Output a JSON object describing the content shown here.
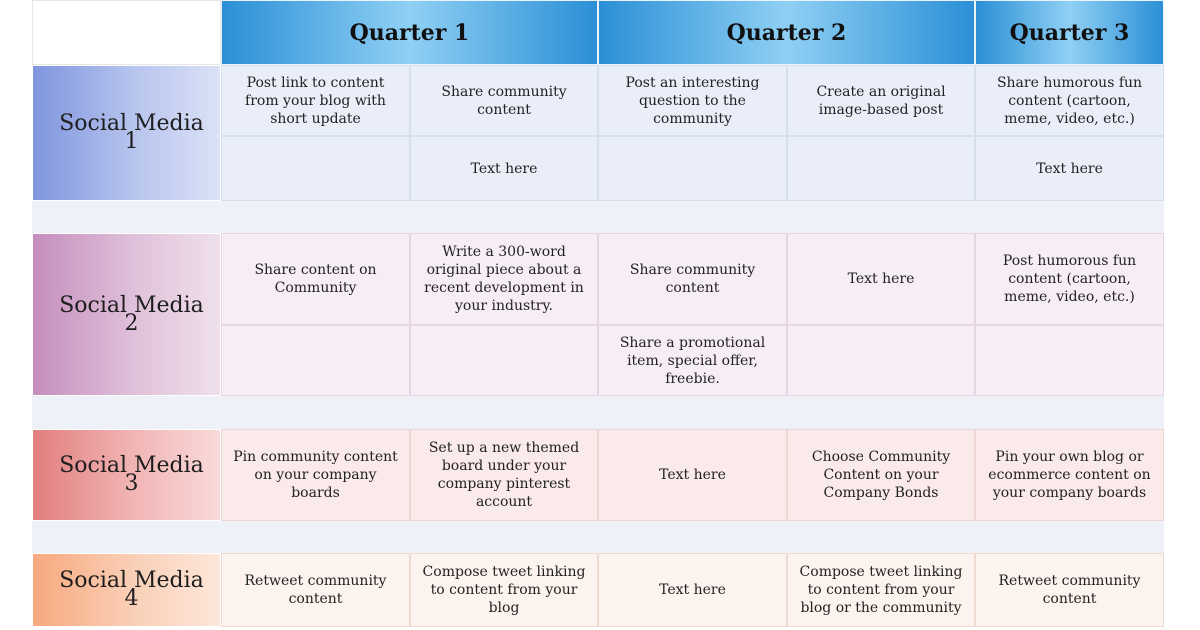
{
  "header": {
    "corner": "",
    "quarters": [
      "Quarter 1",
      "Quarter 2",
      "Quarter 3"
    ]
  },
  "rows": [
    {
      "label": "Social Media 1",
      "top": [
        "Post link to content from your blog with short update",
        "Share community content",
        "Post an interesting question to the community",
        "Create an original image-based post",
        "Share humorous fun content (cartoon, meme, video, etc.)"
      ],
      "bottom": [
        "",
        "Text here",
        "",
        "",
        "Text here"
      ]
    },
    {
      "label": "Social Media 2",
      "top": [
        "Share content on Community",
        "Write a 300-word original piece about a recent development in your industry.",
        "Share community content",
        "Text here",
        "Post humorous fun content (cartoon, meme, video, etc.)"
      ],
      "bottom": [
        "",
        "",
        "Share a promotional item, special offer, freebie.",
        "",
        ""
      ]
    },
    {
      "label": "Social Media 3",
      "cells": [
        "Pin community content on your company boards",
        "Set up a new themed board under your company pinterest account",
        "Text here",
        "Choose Community Content on your Company Bonds",
        "Pin your own blog or ecommerce content on your company boards"
      ]
    },
    {
      "label": "Social Media 4",
      "cells": [
        "Retweet community content",
        "Compose tweet linking to content from your blog",
        "Text here",
        "Compose tweet linking to content from your blog or the community",
        "Retweet community content"
      ]
    }
  ]
}
